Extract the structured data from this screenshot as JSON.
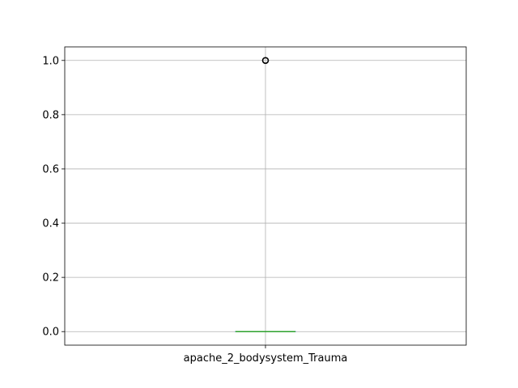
{
  "chart_data": {
    "type": "box",
    "title": "",
    "xlabel": "",
    "ylabel": "",
    "categories": [
      "apache_2_bodysystem_Trauma"
    ],
    "boxes": [
      {
        "name": "apache_2_bodysystem_Trauma",
        "q1": 0.0,
        "median": 0.0,
        "q3": 0.0,
        "whisker_low": 0.0,
        "whisker_high": 0.0,
        "outliers": [
          1.0
        ]
      }
    ],
    "ylim": [
      -0.05,
      1.05
    ],
    "yticks": [
      0.0,
      0.2,
      0.4,
      0.6,
      0.8,
      1.0
    ],
    "ytick_labels": [
      "0.0",
      "0.2",
      "0.4",
      "0.6",
      "0.8",
      "1.0"
    ],
    "grid": true,
    "colors": {
      "box": "#1f77b4",
      "median": "#2ca02c",
      "whisker": "#000000",
      "grid": "#b0b0b0",
      "flier": "#000000"
    }
  }
}
